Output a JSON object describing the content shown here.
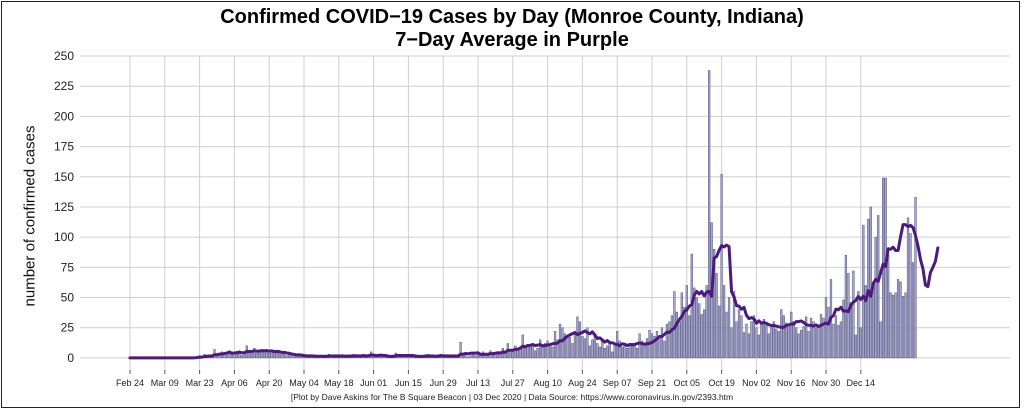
{
  "chart_data": {
    "type": "bar",
    "title": "Confirmed COVID−19 Cases by Day (Monroe County, Indiana)",
    "subtitle": "7−Day Average in Purple",
    "ylabel": "number of confirmed cases",
    "xlabel": "",
    "caption": "[Plot by Dave Askins for The B Square Beacon | 03 Dec 2020 | Data Source: https://www.coronavirus.in.gov/2393.htm",
    "ylim": [
      -10,
      250
    ],
    "y_ticks": [
      0,
      25,
      50,
      75,
      100,
      125,
      150,
      175,
      200,
      225,
      250
    ],
    "x_ticks": [
      "Feb 24",
      "Mar 09",
      "Mar 23",
      "Apr 06",
      "Apr 20",
      "May 04",
      "May 18",
      "Jun 01",
      "Jun 15",
      "Jun 29",
      "Jul 13",
      "Jul 27",
      "Aug 10",
      "Aug 24",
      "Sep 07",
      "Sep 21",
      "Oct 05",
      "Oct 19",
      "Nov 02",
      "Nov 16",
      "Nov 30",
      "Dec 14"
    ],
    "grid": true,
    "bar_color": "#a6a6cc",
    "line_color": "#4b1a7a",
    "start_date": "2020-02-24",
    "series": [
      {
        "type": "bar",
        "values": [
          0,
          0,
          0,
          0,
          0,
          0,
          0,
          0,
          0,
          0,
          0,
          0,
          0,
          0,
          0,
          0,
          0,
          0,
          0,
          0,
          0,
          0,
          0,
          0,
          0,
          0,
          1,
          1,
          2,
          1,
          3,
          2,
          1,
          2,
          7,
          3,
          4,
          5,
          3,
          4,
          6,
          3,
          4,
          5,
          6,
          2,
          4,
          10,
          6,
          5,
          8,
          4,
          5,
          7,
          6,
          5,
          4,
          6,
          5,
          4,
          5,
          3,
          4,
          2,
          3,
          2,
          1,
          2,
          3,
          2,
          1,
          1,
          2,
          1,
          2,
          1,
          1,
          2,
          1,
          1,
          3,
          2,
          1,
          2,
          1,
          2,
          1,
          1,
          2,
          2,
          3,
          1,
          1,
          2,
          3,
          1,
          2,
          5,
          2,
          1,
          1,
          2,
          1,
          1,
          2,
          1,
          2,
          4,
          3,
          1,
          2,
          1,
          1,
          2,
          1,
          2,
          1,
          1,
          1,
          2,
          3,
          1,
          2,
          1,
          1,
          3,
          2,
          1,
          2,
          1,
          2,
          1,
          2,
          13,
          3,
          4,
          1,
          2,
          3,
          2,
          4,
          3,
          5,
          2,
          3,
          6,
          2,
          4,
          5,
          3,
          8,
          4,
          12,
          6,
          5,
          10,
          7,
          9,
          19,
          8,
          10,
          9,
          12,
          6,
          8,
          15,
          10,
          12,
          14,
          10,
          9,
          22,
          15,
          28,
          25,
          20,
          18,
          17,
          12,
          22,
          34,
          30,
          18,
          16,
          25,
          10,
          15,
          20,
          12,
          9,
          14,
          8,
          10,
          12,
          5,
          10,
          22,
          14,
          9,
          10,
          8,
          10,
          12,
          12,
          8,
          20,
          14,
          10,
          16,
          23,
          20,
          18,
          22,
          16,
          25,
          14,
          28,
          30,
          35,
          55,
          38,
          30,
          54,
          42,
          60,
          35,
          86,
          58,
          50,
          45,
          36,
          40,
          60,
          238,
          112,
          90,
          70,
          43,
          152,
          60,
          38,
          50,
          25,
          55,
          30,
          40,
          35,
          21,
          28,
          20,
          30,
          35,
          25,
          19,
          28,
          32,
          27,
          20,
          25,
          30,
          24,
          22,
          40,
          35,
          29,
          27,
          38,
          30,
          25,
          20,
          23,
          26,
          34,
          22,
          33,
          30,
          25,
          27,
          36,
          33,
          50,
          42,
          65,
          28,
          35,
          27,
          30,
          48,
          85,
          70,
          46,
          72,
          19,
          55,
          25,
          110,
          60,
          115,
          125,
          60,
          100,
          118,
          30,
          149,
          149,
          85,
          54,
          52,
          54,
          65,
          63,
          51,
          54,
          116,
          103,
          79,
          133
        ]
      },
      {
        "type": "line",
        "name": "7-Day Average",
        "values": [
          0,
          0,
          0,
          0,
          0,
          0,
          0,
          0,
          0,
          0,
          0,
          0,
          0,
          0,
          0,
          0,
          0,
          0,
          0,
          0,
          0,
          0,
          0,
          0,
          0,
          0,
          0.1,
          0.3,
          0.6,
          0.7,
          1.1,
          1.4,
          1.6,
          1.6,
          2.6,
          2.7,
          3.1,
          3.3,
          3.6,
          4.1,
          4.7,
          4.0,
          4.1,
          4.4,
          4.6,
          4.3,
          4.3,
          5.4,
          5.3,
          5.4,
          5.9,
          5.6,
          5.6,
          6.0,
          5.9,
          6.1,
          5.6,
          5.9,
          5.3,
          5.3,
          5.3,
          4.6,
          4.6,
          4.1,
          3.9,
          3.3,
          2.9,
          2.4,
          2.6,
          2.3,
          2.0,
          1.7,
          1.7,
          1.7,
          1.6,
          1.4,
          1.4,
          1.4,
          1.4,
          1.3,
          1.6,
          1.6,
          1.6,
          1.7,
          1.6,
          1.7,
          1.6,
          1.4,
          1.6,
          1.6,
          1.7,
          1.7,
          1.7,
          1.7,
          1.9,
          1.6,
          1.9,
          2.4,
          2.3,
          1.9,
          2.1,
          2.3,
          2.0,
          2.0,
          1.4,
          1.3,
          1.4,
          1.9,
          2.0,
          2.0,
          2.0,
          2.0,
          2.0,
          2.0,
          1.9,
          1.6,
          1.4,
          1.3,
          1.4,
          1.6,
          1.6,
          1.6,
          1.6,
          1.4,
          1.6,
          1.9,
          1.7,
          1.7,
          1.7,
          1.6,
          1.7,
          1.6,
          1.6,
          3.1,
          3.1,
          3.7,
          3.4,
          3.9,
          4.0,
          4.0,
          4.3,
          2.9,
          2.9,
          3.0,
          3.0,
          3.6,
          3.6,
          3.9,
          4.3,
          4.1,
          4.9,
          4.7,
          6.3,
          6.3,
          6.4,
          7.0,
          7.3,
          8.1,
          9.7,
          9.3,
          10.3,
          10.4,
          11.1,
          10.3,
          10.6,
          11.0,
          10.0,
          10.3,
          10.7,
          11.0,
          11.7,
          12.0,
          12.2,
          14.3,
          14.1,
          16.4,
          18.0,
          19.1,
          20.1,
          20.9,
          19.3,
          20.3,
          21.1,
          22.4,
          21.1,
          20.0,
          21.6,
          19.0,
          16.1,
          16.6,
          14.9,
          13.1,
          14.4,
          12.6,
          12.6,
          11.6,
          11.1,
          10.1,
          11.7,
          11.3,
          10.3,
          11.1,
          11.0,
          11.0,
          12.0,
          12.3,
          11.9,
          11.4,
          11.7,
          12.0,
          12.9,
          14.1,
          15.9,
          17.7,
          17.7,
          19.6,
          21.4,
          21.0,
          23.3,
          24.6,
          28.6,
          31.9,
          34.4,
          38.6,
          39.7,
          42.9,
          44.1,
          51.9,
          55.1,
          53.0,
          55.0,
          51.4,
          54.6,
          55.1,
          50.9,
          82.6,
          84.0,
          89.1,
          93.0,
          91.9,
          93.4,
          92.1,
          54.9,
          50.6,
          43.3,
          42.9,
          40.3,
          41.9,
          35.3,
          32.6,
          33.4,
          32.4,
          28.7,
          30.7,
          28.7,
          29.4,
          28.6,
          27.6,
          26.7,
          26.9,
          26.4,
          25.7,
          25.4,
          25.3,
          26.9,
          27.4,
          28.0,
          28.1,
          30.1,
          30.1,
          30.6,
          29.4,
          27.6,
          27.1,
          27.0,
          26.4,
          27.4,
          26.0,
          27.1,
          28.0,
          28.9,
          28.0,
          33.6,
          35.0,
          40.4,
          39.9,
          41.9,
          38.7,
          39.0,
          38.3,
          43.7,
          46.1,
          47.6,
          50.9,
          48.4,
          51.0,
          47.4,
          55.7,
          51.1,
          61.7,
          65.1,
          63.4,
          70.6,
          77.6,
          75.7,
          90.4,
          90.0,
          91.7,
          89.0,
          89.0,
          100.4,
          110.4,
          110.4,
          108.7,
          109.7,
          108.0,
          101.3,
          92.9,
          81.6,
          73.9,
          60.3,
          59.1,
          70.6,
          75.1,
          79.9,
          91.1
        ]
      }
    ]
  }
}
